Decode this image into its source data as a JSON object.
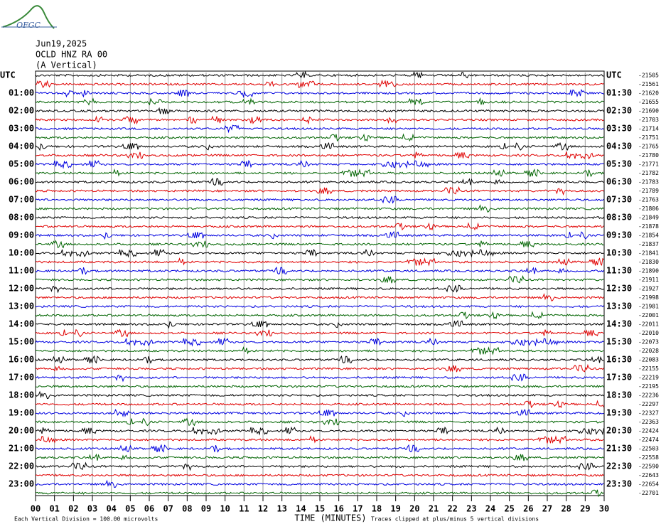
{
  "header": {
    "logo": "OFGC",
    "date": "Jun19,2025",
    "station": "OCLD HNZ RA 00",
    "component": "(A Vertical)"
  },
  "left_labels": [
    "UTC",
    "01:00",
    "02:00",
    "03:00",
    "04:00",
    "05:00",
    "06:00",
    "07:00",
    "08:00",
    "09:00",
    "10:00",
    "11:00",
    "12:00",
    "13:00",
    "14:00",
    "15:00",
    "16:00",
    "17:00",
    "18:00",
    "19:00",
    "20:00",
    "21:00",
    "22:00",
    "23:00"
  ],
  "right_labels": [
    "UTC",
    "01:30",
    "02:30",
    "03:30",
    "04:30",
    "05:30",
    "06:30",
    "07:30",
    "08:30",
    "09:30",
    "10:30",
    "11:30",
    "12:30",
    "13:30",
    "14:30",
    "15:30",
    "16:30",
    "17:30",
    "18:30",
    "19:30",
    "20:30",
    "21:30",
    "22:30",
    "23:30"
  ],
  "offsets": [
    -21505,
    -21561,
    -21620,
    -21655,
    -21690,
    -21703,
    -21714,
    -21751,
    -21765,
    -21780,
    -21771,
    -21782,
    -21783,
    -21789,
    -21763,
    -21806,
    -21849,
    -21878,
    -21854,
    -21837,
    -21841,
    -21830,
    -21890,
    -21911,
    -21927,
    -21998,
    -21981,
    -22001,
    -22011,
    -22010,
    -22073,
    -22028,
    -22083,
    -22155,
    -22219,
    -22195,
    -22236,
    -22297,
    -22327,
    -22363,
    -22424,
    -22474,
    -22503,
    -22558,
    -22590,
    -22643,
    -22654,
    -22701
  ],
  "x_labels": [
    "00",
    "01",
    "02",
    "03",
    "04",
    "05",
    "06",
    "07",
    "08",
    "09",
    "10",
    "11",
    "12",
    "13",
    "14",
    "15",
    "16",
    "17",
    "18",
    "19",
    "20",
    "21",
    "22",
    "23",
    "24",
    "25",
    "26",
    "27",
    "28",
    "29",
    "30"
  ],
  "x_title": "TIME (MINUTES)",
  "footer": {
    "scale": "Each Vertical Division =  100.00 microvolts",
    "clip": "Traces clipped at plus/minus 5 vertical divisions"
  }
}
